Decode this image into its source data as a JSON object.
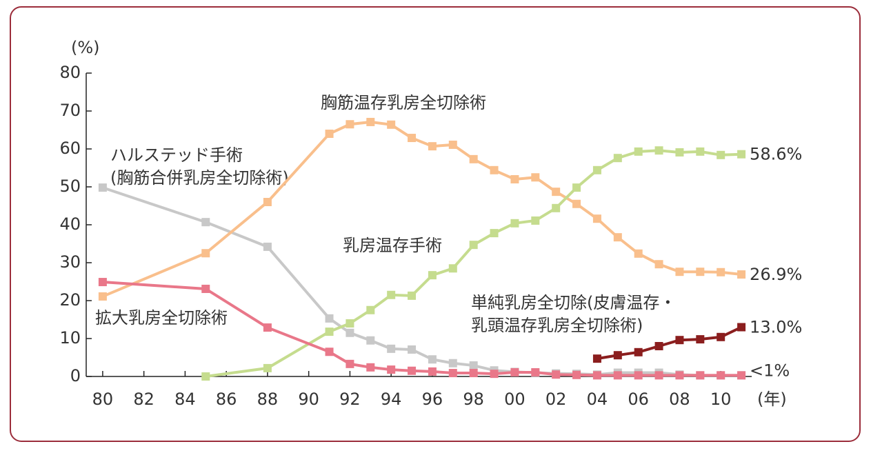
{
  "chart_data": {
    "type": "line",
    "x": [
      1980,
      1985,
      1988,
      1991,
      1992,
      1993,
      1994,
      1995,
      1996,
      1997,
      1998,
      1999,
      2000,
      2001,
      2002,
      2003,
      2004,
      2005,
      2006,
      2007,
      2008,
      2009,
      2010,
      2011
    ],
    "xlim": [
      1979.2,
      2011.5
    ],
    "xticks": [
      {
        "value": 1980,
        "label": "80"
      },
      {
        "value": 1982,
        "label": "82"
      },
      {
        "value": 1984,
        "label": "84"
      },
      {
        "value": 1986,
        "label": "86"
      },
      {
        "value": 1988,
        "label": "88"
      },
      {
        "value": 1990,
        "label": "90"
      },
      {
        "value": 1992,
        "label": "92"
      },
      {
        "value": 1994,
        "label": "94"
      },
      {
        "value": 1996,
        "label": "96"
      },
      {
        "value": 1998,
        "label": "98"
      },
      {
        "value": 2000,
        "label": "00"
      },
      {
        "value": 2002,
        "label": "02"
      },
      {
        "value": 2004,
        "label": "04"
      },
      {
        "value": 2006,
        "label": "06"
      },
      {
        "value": 2008,
        "label": "08"
      },
      {
        "value": 2010,
        "label": "10"
      }
    ],
    "x_label": "(年)",
    "y_label": "(%)",
    "ylim": [
      0,
      80
    ],
    "yticks": [
      0,
      10,
      20,
      30,
      40,
      50,
      60,
      70,
      80
    ],
    "series": [
      {
        "name": "ハルステッド手術\n(胸筋合併乳房全切除術)",
        "color": "#c8c8c8",
        "values": [
          49.8,
          40.7,
          34.2,
          15.3,
          11.5,
          9.5,
          7.3,
          7.1,
          4.5,
          3.5,
          2.9,
          1.6,
          1.2,
          1.0,
          0.8,
          0.7,
          0.5,
          1.0,
          1.0,
          1.0,
          0.5,
          0.3,
          0.3,
          0.3
        ]
      },
      {
        "name": "胸筋温存乳房全切除術",
        "color": "#f9bf8c",
        "values": [
          21.1,
          32.5,
          46.0,
          64.0,
          66.5,
          67.1,
          66.4,
          62.9,
          60.7,
          61.1,
          57.3,
          54.4,
          52.0,
          52.5,
          48.7,
          45.5,
          41.6,
          36.7,
          32.4,
          29.6,
          27.6,
          27.6,
          27.5,
          26.9
        ],
        "value_labels": [
          null,
          null,
          null,
          null,
          null,
          null,
          null,
          null,
          null,
          null,
          null,
          null,
          null,
          null,
          null,
          null,
          null,
          null,
          null,
          null,
          null,
          null,
          null,
          "26.9%"
        ]
      },
      {
        "name": "乳房温存手術",
        "color": "#c5dc8e",
        "values": [
          null,
          0,
          2.2,
          11.8,
          14.0,
          17.5,
          21.5,
          21.3,
          26.7,
          28.5,
          34.7,
          37.8,
          40.4,
          41.1,
          44.4,
          49.8,
          54.4,
          57.6,
          59.3,
          59.6,
          59.1,
          59.3,
          58.4,
          58.6
        ],
        "value_labels": [
          null,
          null,
          null,
          null,
          null,
          null,
          null,
          null,
          null,
          null,
          null,
          null,
          null,
          null,
          null,
          null,
          null,
          null,
          null,
          null,
          null,
          null,
          null,
          "58.6%"
        ]
      },
      {
        "name": "拡大乳房全切除術",
        "color": "#e97789",
        "values": [
          24.9,
          23.1,
          12.9,
          6.5,
          3.3,
          2.4,
          1.8,
          1.5,
          1.3,
          0.9,
          0.9,
          0.7,
          1.1,
          1.1,
          0.5,
          0.4,
          0.3,
          0.3,
          0.3,
          0.3,
          0.3,
          0.3,
          0.3,
          0.3
        ],
        "value_labels": [
          null,
          null,
          null,
          null,
          null,
          null,
          null,
          null,
          null,
          null,
          null,
          null,
          null,
          null,
          null,
          null,
          null,
          null,
          null,
          null,
          null,
          null,
          null,
          "<1%"
        ]
      },
      {
        "name": "単純乳房全切除(皮膚温存・\n乳頭温存乳房全切除術)",
        "color": "#8b1e1e",
        "values": [
          null,
          null,
          null,
          null,
          null,
          null,
          null,
          null,
          null,
          null,
          null,
          null,
          null,
          null,
          null,
          null,
          4.7,
          5.6,
          6.4,
          8.0,
          9.6,
          9.8,
          10.4,
          13.0
        ],
        "value_labels": [
          null,
          null,
          null,
          null,
          null,
          null,
          null,
          null,
          null,
          null,
          null,
          null,
          null,
          null,
          null,
          null,
          null,
          null,
          null,
          null,
          null,
          null,
          null,
          "13.0%"
        ]
      }
    ]
  }
}
